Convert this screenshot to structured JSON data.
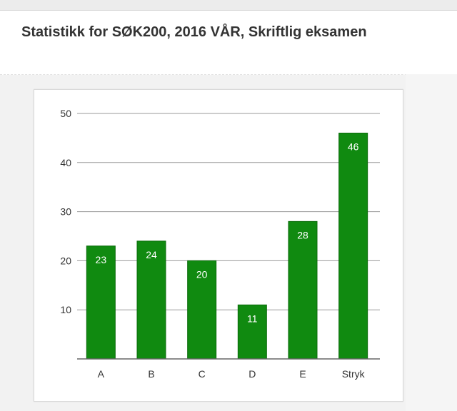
{
  "page": {
    "title": "Statistikk for SØK200, 2016 VÅR, Skriftlig eksamen"
  },
  "colors": {
    "bar": "#108a10",
    "bar_edge": "#0a6a0a",
    "grid": "#9a9a9a",
    "axis": "#666666",
    "text": "#333333",
    "label": "#ffffff"
  },
  "chart_data": {
    "type": "bar",
    "title": "",
    "xlabel": "",
    "ylabel": "",
    "categories": [
      "A",
      "B",
      "C",
      "D",
      "E",
      "Stryk"
    ],
    "values": [
      23,
      24,
      20,
      11,
      28,
      46
    ],
    "ylim": [
      0,
      50
    ],
    "yticks": [
      10,
      20,
      30,
      40,
      50
    ],
    "grid": true,
    "data_labels": true
  }
}
